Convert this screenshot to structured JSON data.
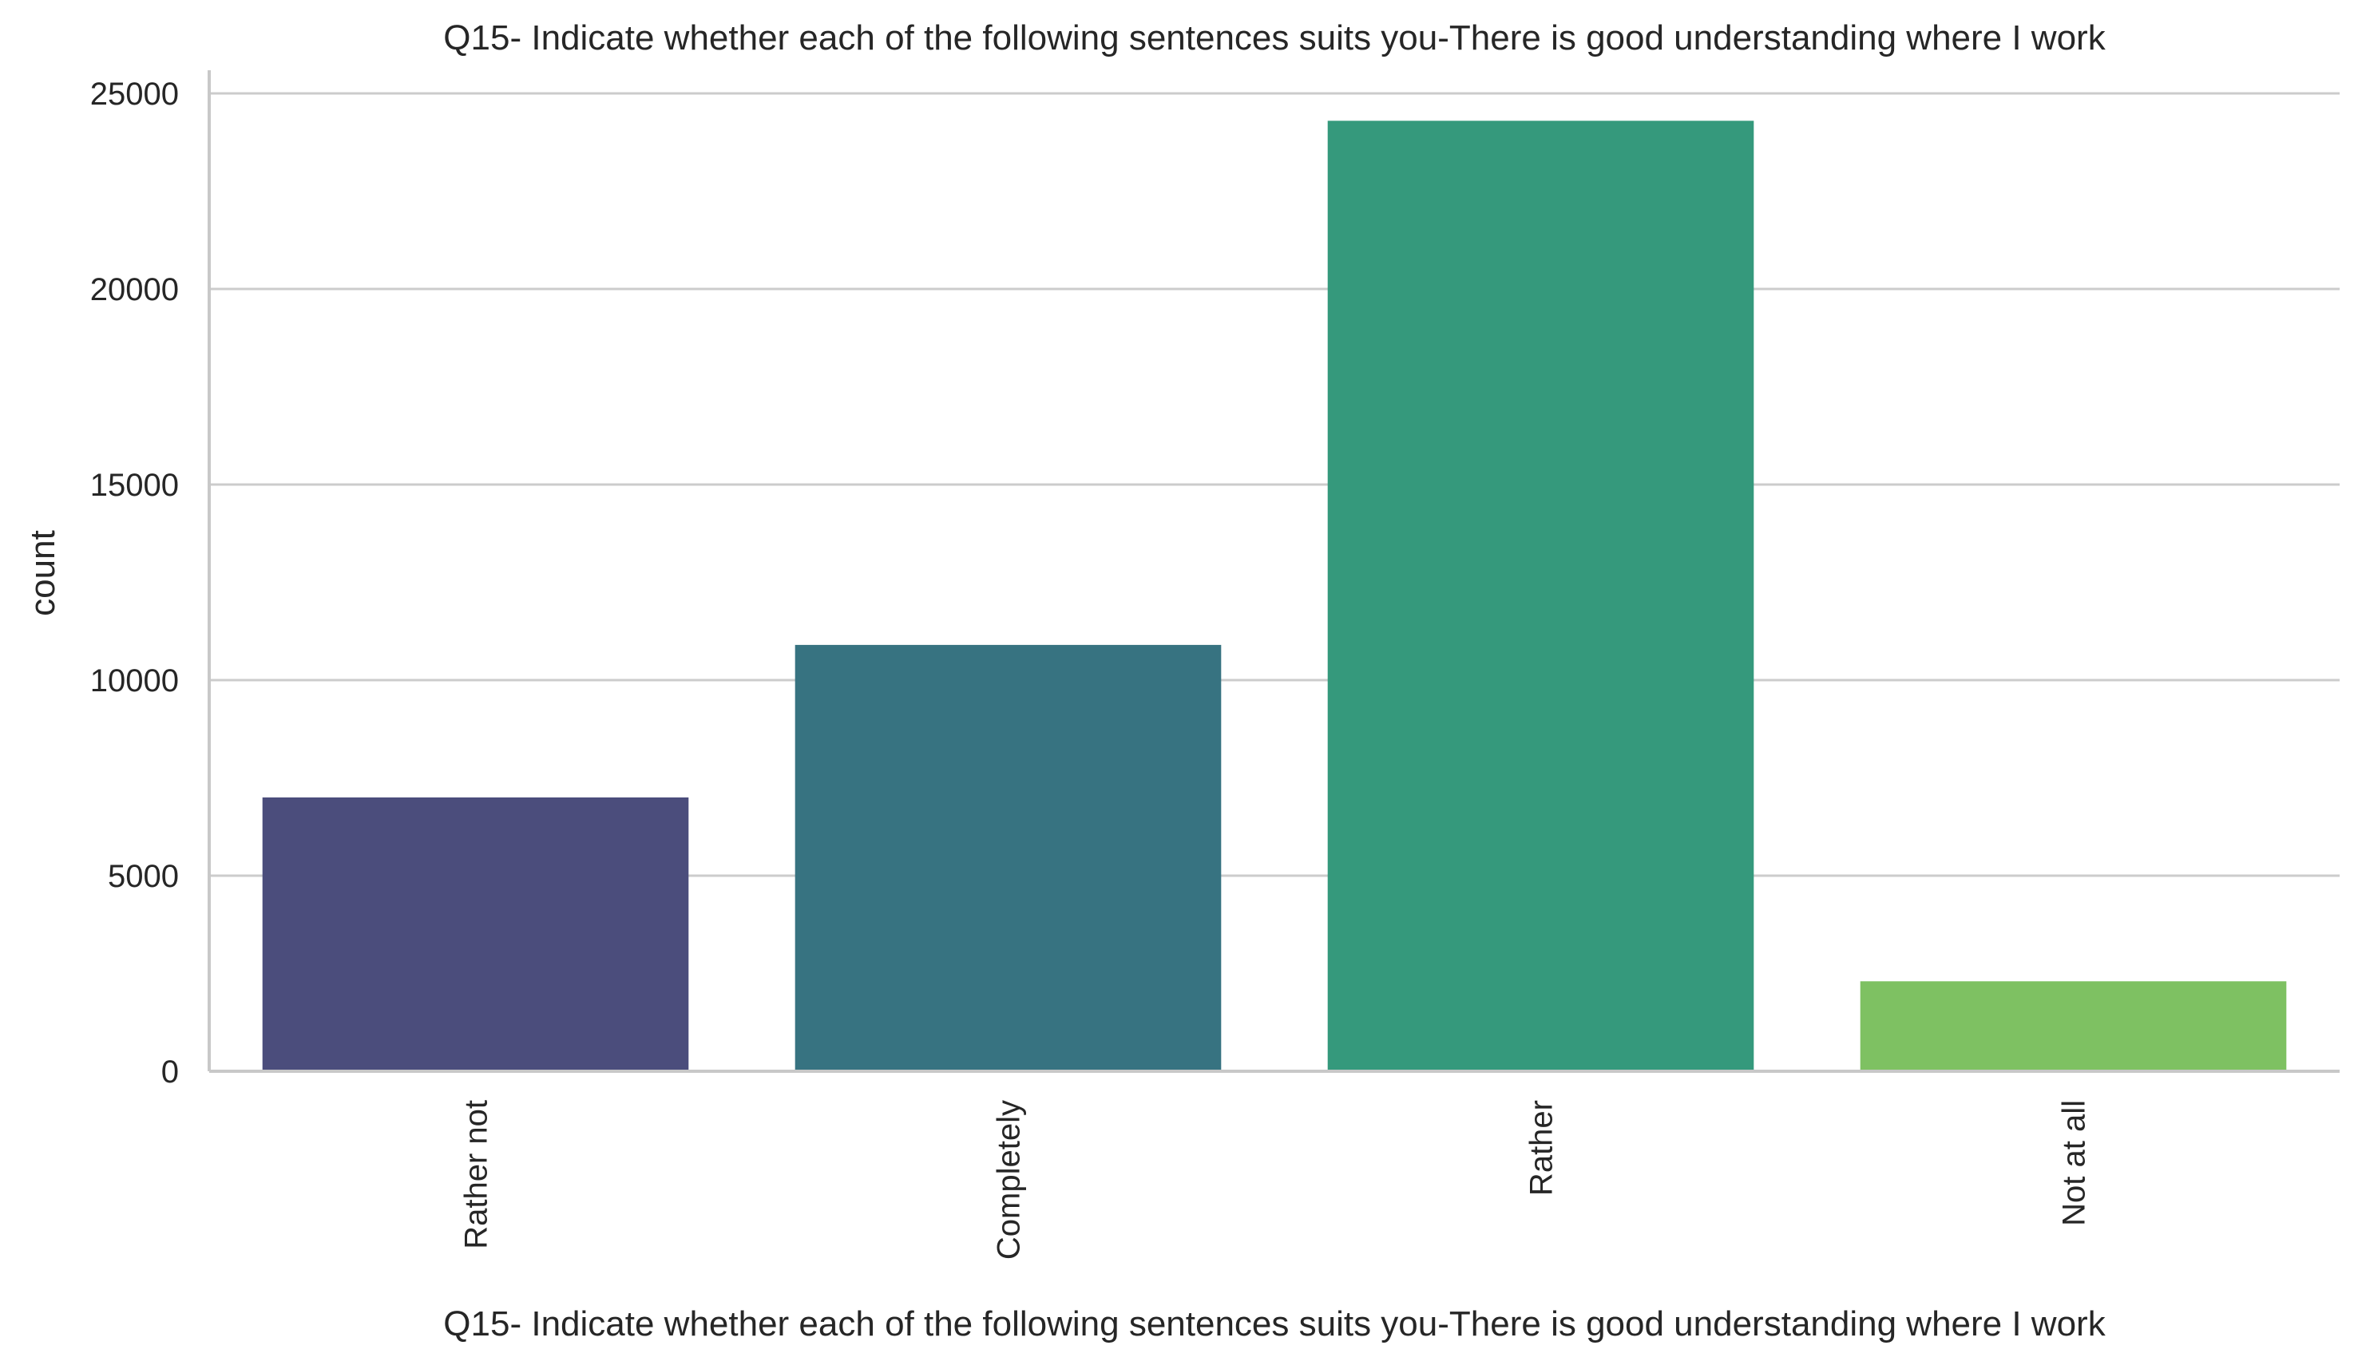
{
  "chart_data": {
    "type": "bar",
    "title": "Q15- Indicate whether each of the following sentences suits you-There is good understanding where I work",
    "xlabel": "Q15- Indicate whether each of the following sentences suits you-There is good understanding where I work",
    "ylabel": "count",
    "categories": [
      "Rather not",
      "Completely",
      "Rather",
      "Not at all"
    ],
    "values": [
      7000,
      10900,
      24300,
      2300
    ],
    "colors": [
      "#4b4d7c",
      "#377381",
      "#35997c",
      "#7ec162"
    ],
    "ylim": [
      0,
      25000
    ],
    "yticks": [
      0,
      5000,
      10000,
      15000,
      20000,
      25000
    ],
    "grid": "horizontal",
    "legend": "none",
    "xtick_rotation": -90
  }
}
